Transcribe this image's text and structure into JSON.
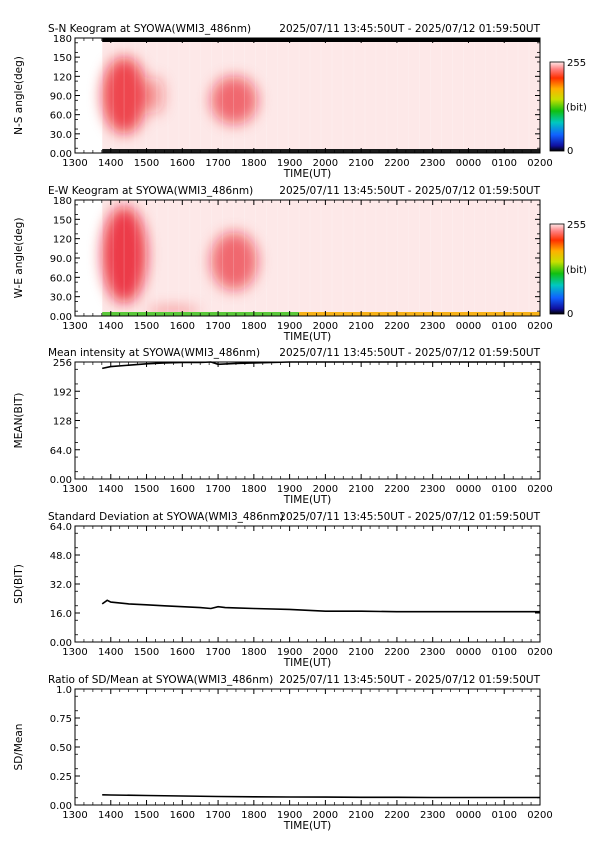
{
  "period": "2025/07/11 13:45:50UT - 2025/07/12 01:59:50UT",
  "colorbar": {
    "max_label": "255",
    "min_label": "0",
    "unit_label": "(bit)"
  },
  "x_axis": {
    "label": "TIME(UT)",
    "ticks": [
      "1300",
      "1400",
      "1500",
      "1600",
      "1700",
      "1800",
      "1900",
      "2000",
      "2100",
      "2200",
      "2300",
      "0000",
      "0100",
      "0200"
    ]
  },
  "chart_data": [
    {
      "type": "heatmap",
      "title": "S-N Keogram at SYOWA(WMI3_486nm)",
      "ylabel": "N-S angle(deg)",
      "ylim": [
        0,
        180
      ],
      "yticks": [
        "0.00",
        "30.0",
        "60.0",
        "90.0",
        "120",
        "150",
        "180"
      ],
      "xlim": [
        0,
        13
      ],
      "data_start": 0.76,
      "data_end": 13.0,
      "background": "#fde8e8",
      "top_band_color": "#000000",
      "blobs": [
        {
          "x0": 0.76,
          "x1": 2.0,
          "y0": 30,
          "y1": 150,
          "level": 0.75
        },
        {
          "x0": 2.0,
          "x1": 2.5,
          "y0": 60,
          "y1": 120,
          "level": 0.35
        },
        {
          "x0": 3.8,
          "x1": 5.1,
          "y0": 45,
          "y1": 120,
          "level": 0.6
        }
      ]
    },
    {
      "type": "heatmap",
      "title": "E-W Keogram at SYOWA(WMI3_486nm)",
      "ylabel": "W-E angle(deg)",
      "ylim": [
        0,
        180
      ],
      "yticks": [
        "0.00",
        "30.0",
        "60.0",
        "90.0",
        "120",
        "150",
        "180"
      ],
      "xlim": [
        0,
        13
      ],
      "data_start": 0.76,
      "data_end": 13.0,
      "background": "#fde8e8",
      "bottom_band_color": "#f7b218",
      "blobs": [
        {
          "x0": 0.76,
          "x1": 2.0,
          "y0": 20,
          "y1": 170,
          "level": 0.8
        },
        {
          "x0": 2.0,
          "x1": 3.5,
          "y0": 0,
          "y1": 15,
          "level": 0.35
        },
        {
          "x0": 3.8,
          "x1": 5.1,
          "y0": 40,
          "y1": 130,
          "level": 0.6
        }
      ]
    },
    {
      "type": "line",
      "title": "Mean intensity at SYOWA(WMI3_486nm)",
      "ylabel": "MEAN(BIT)",
      "ylim": [
        0,
        256
      ],
      "yticks": [
        "0.00",
        "64.0",
        "128",
        "192",
        "256"
      ],
      "xlim": [
        0,
        13
      ],
      "series": [
        {
          "x": [
            0.76,
            1.0,
            1.5,
            2.0,
            2.5,
            3.0,
            3.5,
            3.8,
            4.0,
            4.5,
            5.0,
            5.5,
            6.0,
            7.0,
            8.0,
            9.0,
            10.0,
            11.0,
            12.0,
            13.0
          ],
          "y": [
            242,
            246,
            249,
            252,
            254,
            255,
            255,
            256,
            251,
            253,
            254,
            255,
            256,
            256,
            256,
            256,
            256,
            256,
            256,
            256
          ]
        }
      ]
    },
    {
      "type": "line",
      "title": "Standard Deviation at SYOWA(WMI3_486nm)",
      "ylabel": "SD(BIT)",
      "ylim": [
        0,
        64
      ],
      "yticks": [
        "0.00",
        "16.0",
        "32.0",
        "48.0",
        "64.0"
      ],
      "xlim": [
        0,
        13
      ],
      "series": [
        {
          "x": [
            0.76,
            0.9,
            1.0,
            1.5,
            2.0,
            2.5,
            3.0,
            3.5,
            3.8,
            4.0,
            4.2,
            4.5,
            5.0,
            6.0,
            7.0,
            8.0,
            9.0,
            10.0,
            11.0,
            12.0,
            13.0
          ],
          "y": [
            21,
            23,
            22,
            21,
            20.5,
            20,
            19.5,
            19,
            18.5,
            19.5,
            19,
            18.8,
            18.5,
            18,
            17,
            17,
            16.7,
            16.7,
            16.7,
            16.7,
            16.7
          ]
        }
      ]
    },
    {
      "type": "line",
      "title": "Ratio of SD/Mean at SYOWA(WMI3_486nm)",
      "ylabel": "SD/Mean",
      "ylim": [
        0,
        1
      ],
      "yticks": [
        "0.00",
        "0.25",
        "0.50",
        "0.75",
        "1.0"
      ],
      "xlim": [
        0,
        13
      ],
      "series": [
        {
          "x": [
            0.76,
            1.0,
            2.0,
            3.0,
            4.0,
            5.0,
            6.0,
            7.0,
            8.0,
            9.0,
            10.0,
            11.0,
            12.0,
            13.0
          ],
          "y": [
            0.088,
            0.086,
            0.082,
            0.078,
            0.073,
            0.071,
            0.069,
            0.068,
            0.066,
            0.066,
            0.065,
            0.065,
            0.065,
            0.065
          ]
        }
      ]
    }
  ]
}
